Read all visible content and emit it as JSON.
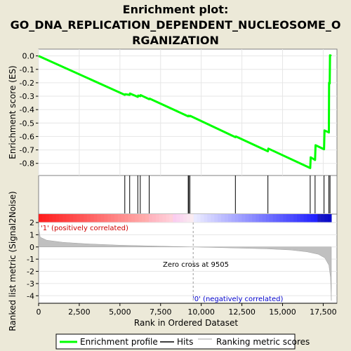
{
  "title_line1": "Enrichment plot:",
  "title_line2": "GO_DNA_REPLICATION_DEPENDENT_NUCLEOSOME_O",
  "title_line3": "RGANIZATION",
  "top_ylabel": "Enrichment score (ES)",
  "bottom_ylabel": "Ranked list metric (Signal2Noise)",
  "xlabel": "Rank in Ordered Dataset",
  "pos_label": "'1' (positively correlated)",
  "neg_label": "'0' (negatively correlated)",
  "zero_cross_label": "Zero cross at 9505",
  "legend": {
    "enrichment": "Enrichment profile",
    "hits": "Hits",
    "ranking": "Ranking metric scores"
  },
  "colors": {
    "background": "#ece9d8",
    "enrichment": "#00ff00",
    "hits": "#000000",
    "ranking_fill": "#c0c0c0",
    "pos_label": "#cc0000",
    "neg_label": "#0000cc"
  },
  "chart_data": {
    "type": "line",
    "x_range": [
      0,
      18000
    ],
    "x_ticks": [
      0,
      2500,
      5000,
      7500,
      10000,
      12500,
      15000,
      17500
    ],
    "x_tick_labels": [
      "0",
      "2,500",
      "5,000",
      "7,500",
      "10,000",
      "12,500",
      "15,000",
      "17,500"
    ],
    "es": {
      "ylim": [
        -0.88,
        0.04
      ],
      "y_ticks": [
        0.0,
        -0.1,
        -0.2,
        -0.3,
        -0.4,
        -0.5,
        -0.6,
        -0.7,
        -0.8
      ],
      "y_tick_labels": [
        "0.0",
        "-0.1",
        "-0.2",
        "-0.3",
        "-0.4",
        "-0.5",
        "-0.6",
        "-0.7",
        "-0.8"
      ],
      "points": [
        [
          0,
          0.0
        ],
        [
          5300,
          -0.29
        ],
        [
          5330,
          -0.285
        ],
        [
          5600,
          -0.29
        ],
        [
          5620,
          -0.28
        ],
        [
          6100,
          -0.305
        ],
        [
          6120,
          -0.295
        ],
        [
          6250,
          -0.3
        ],
        [
          6270,
          -0.292
        ],
        [
          6800,
          -0.322
        ],
        [
          6830,
          -0.318
        ],
        [
          9200,
          -0.45
        ],
        [
          9220,
          -0.445
        ],
        [
          9300,
          -0.45
        ],
        [
          9320,
          -0.446
        ],
        [
          12100,
          -0.605
        ],
        [
          12130,
          -0.6
        ],
        [
          14100,
          -0.71
        ],
        [
          14130,
          -0.69
        ],
        [
          16700,
          -0.835
        ],
        [
          16730,
          -0.755
        ],
        [
          17000,
          -0.775
        ],
        [
          17030,
          -0.665
        ],
        [
          17550,
          -0.695
        ],
        [
          17580,
          -0.555
        ],
        [
          17850,
          -0.57
        ],
        [
          17860,
          -0.2
        ],
        [
          17900,
          -0.205
        ],
        [
          17920,
          0.005
        ],
        [
          18000,
          0.0
        ]
      ]
    },
    "hits": [
      5300,
      5600,
      6100,
      6250,
      6800,
      9200,
      9230,
      9300,
      12100,
      14100,
      16700,
      17000,
      17550,
      17850,
      17920
    ],
    "ranking": {
      "ylim": [
        -4.5,
        2.0
      ],
      "y_ticks": [
        2,
        1,
        0,
        -1,
        -2,
        -3,
        -4
      ],
      "y_tick_labels": [
        "2",
        "1",
        "0",
        "-1",
        "-2",
        "-3",
        "-4"
      ],
      "zero_cross": 9505,
      "profile": [
        [
          0,
          1.6
        ],
        [
          100,
          0.8
        ],
        [
          500,
          0.55
        ],
        [
          1500,
          0.38
        ],
        [
          3000,
          0.25
        ],
        [
          5000,
          0.14
        ],
        [
          7000,
          0.08
        ],
        [
          9505,
          0.0
        ],
        [
          12000,
          -0.08
        ],
        [
          14000,
          -0.15
        ],
        [
          15500,
          -0.25
        ],
        [
          16500,
          -0.4
        ],
        [
          17200,
          -0.6
        ],
        [
          17600,
          -0.9
        ],
        [
          17850,
          -1.5
        ],
        [
          17950,
          -2.5
        ],
        [
          18000,
          -4.4
        ]
      ]
    }
  }
}
